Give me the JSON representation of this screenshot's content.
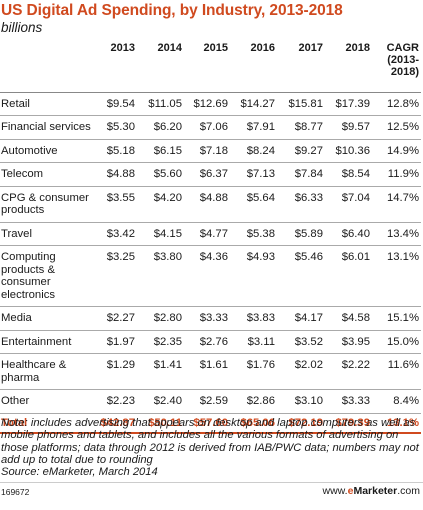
{
  "title": "US Digital Ad Spending, by Industry, 2013-2018",
  "subtitle": "billions",
  "chart_data": {
    "type": "table",
    "title": "US Digital Ad Spending, by Industry, 2013-2018",
    "subtitle": "billions",
    "columns": [
      "2013",
      "2014",
      "2015",
      "2016",
      "2017",
      "2018",
      "CAGR (2013-2018)"
    ],
    "rows": [
      {
        "label": "Retail",
        "values": [
          "$9.54",
          "$11.05",
          "$12.69",
          "$14.27",
          "$15.81",
          "$17.39",
          "12.8%"
        ]
      },
      {
        "label": "Financial services",
        "values": [
          "$5.30",
          "$6.20",
          "$7.06",
          "$7.91",
          "$8.77",
          "$9.57",
          "12.5%"
        ]
      },
      {
        "label": "Automotive",
        "values": [
          "$5.18",
          "$6.15",
          "$7.18",
          "$8.24",
          "$9.27",
          "$10.36",
          "14.9%"
        ]
      },
      {
        "label": "Telecom",
        "values": [
          "$4.88",
          "$5.60",
          "$6.37",
          "$7.13",
          "$7.84",
          "$8.54",
          "11.9%"
        ]
      },
      {
        "label": "CPG & consumer products",
        "values": [
          "$3.55",
          "$4.20",
          "$4.88",
          "$5.64",
          "$6.33",
          "$7.04",
          "14.7%"
        ]
      },
      {
        "label": "Travel",
        "values": [
          "$3.42",
          "$4.15",
          "$4.77",
          "$5.38",
          "$5.89",
          "$6.40",
          "13.4%"
        ]
      },
      {
        "label": "Computing products & consumer electronics",
        "values": [
          "$3.25",
          "$3.80",
          "$4.36",
          "$4.93",
          "$5.46",
          "$6.01",
          "13.1%"
        ]
      },
      {
        "label": "Media",
        "values": [
          "$2.27",
          "$2.80",
          "$3.33",
          "$3.83",
          "$4.17",
          "$4.58",
          "15.1%"
        ]
      },
      {
        "label": "Entertainment",
        "values": [
          "$1.97",
          "$2.35",
          "$2.76",
          "$3.11",
          "$3.52",
          "$3.95",
          "15.0%"
        ]
      },
      {
        "label": "Healthcare & pharma",
        "values": [
          "$1.29",
          "$1.41",
          "$1.61",
          "$1.76",
          "$2.02",
          "$2.22",
          "11.6%"
        ]
      },
      {
        "label": "Other",
        "values": [
          "$2.23",
          "$2.40",
          "$2.59",
          "$2.86",
          "$3.10",
          "$3.33",
          "8.4%"
        ]
      }
    ],
    "total": {
      "label": "Total",
      "values": [
        "$42.87",
        "$50.11",
        "$57.60",
        "$65.06",
        "$72.19",
        "$79.39",
        "13.1%"
      ]
    }
  },
  "note": "Note: includes advertising that appears on desktop and laptop computers as well as mobile phones and tablets, and includes all the various formats of advertising on those platforms; data through 2012 is derived from IAB/PWC data; numbers may not add up to total due to rounding",
  "source": "Source: eMarketer, March 2014",
  "footer_id": "169672",
  "brand": {
    "prefix": "www.",
    "e": "e",
    "name": "Marketer",
    "suffix": ".com"
  },
  "colors": {
    "accent": "#d04a1f",
    "text": "#1a1a1a"
  }
}
